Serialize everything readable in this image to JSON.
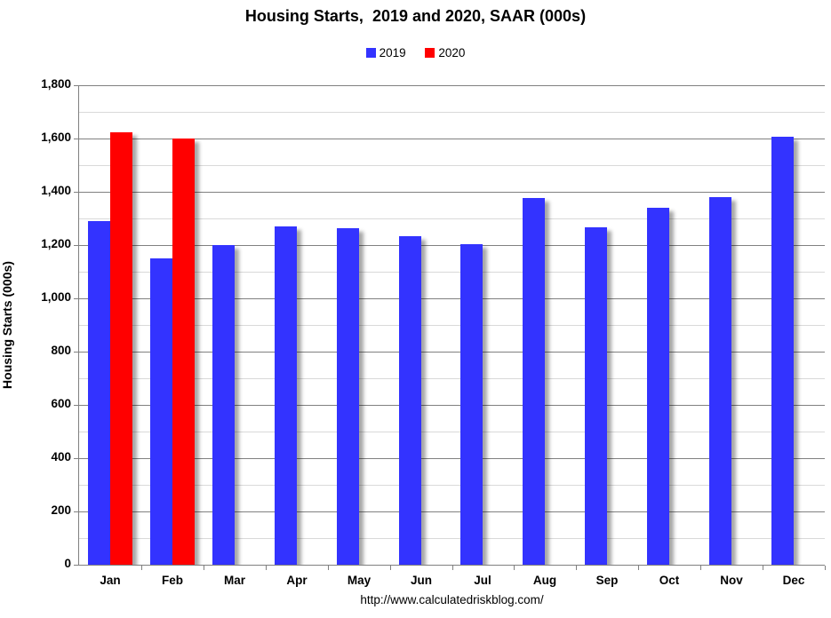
{
  "title": "Housing Starts,  2019 and 2020, SAAR (000s)",
  "legend": [
    {
      "label": "2019",
      "color": "#3333FF"
    },
    {
      "label": "2020",
      "color": "#FF0000"
    }
  ],
  "footer_url": "http://www.calculatedriskblog.com/",
  "colors": {
    "series_2019": "#3333FF",
    "series_2020": "#FF0000",
    "major_gridline": "#808080",
    "minor_gridline": "#D9D9D9",
    "axis": "#808080",
    "text": "#000000",
    "background": "#FFFFFF"
  },
  "chart_data": {
    "type": "bar",
    "title": "Housing Starts,  2019 and 2020, SAAR (000s)",
    "xlabel": "",
    "ylabel": "Housing Starts (000s)",
    "ylim": [
      0,
      1800
    ],
    "y_major_step": 200,
    "y_minor_step": 100,
    "y_tick_labels": [
      "0",
      "200",
      "400",
      "600",
      "800",
      "1,000",
      "1,200",
      "1,400",
      "1,600",
      "1,800"
    ],
    "grid": true,
    "legend_position": "top-center",
    "categories": [
      "Jan",
      "Feb",
      "Mar",
      "Apr",
      "May",
      "Jun",
      "Jul",
      "Aug",
      "Sep",
      "Oct",
      "Nov",
      "Dec"
    ],
    "series": [
      {
        "name": "2019",
        "color": "#3333FF",
        "values": [
          1291,
          1149,
          1199,
          1270,
          1264,
          1233,
          1204,
          1375,
          1266,
          1340,
          1380,
          1608
        ]
      },
      {
        "name": "2020",
        "color": "#FF0000",
        "values": [
          1624,
          1599,
          null,
          null,
          null,
          null,
          null,
          null,
          null,
          null,
          null,
          null
        ]
      }
    ]
  }
}
